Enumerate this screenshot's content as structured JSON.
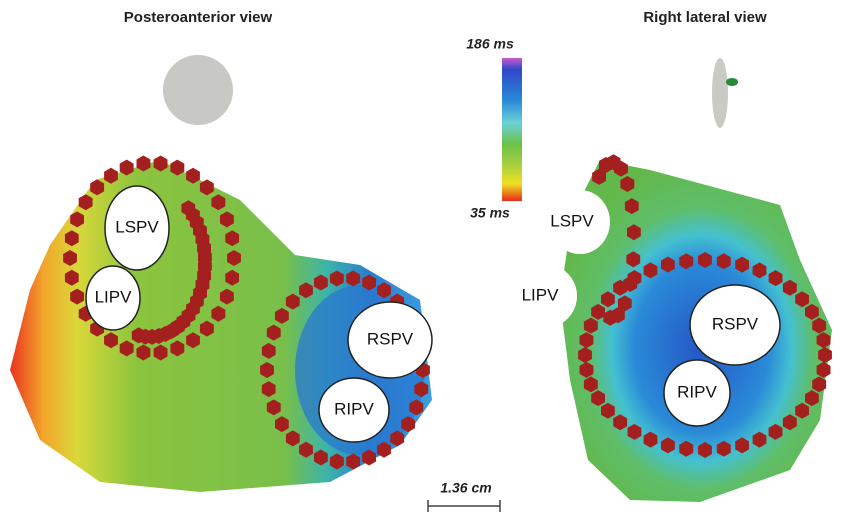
{
  "views": [
    {
      "title": "Posteroanterior view",
      "labels": [
        "LSPV",
        "LIPV",
        "RSPV",
        "RIPV"
      ]
    },
    {
      "title": "Right lateral view",
      "labels": [
        "LSPV",
        "LIPV",
        "RSPV",
        "RIPV"
      ]
    }
  ],
  "color_scale": {
    "max_label": "186 ms",
    "min_label": "35 ms"
  },
  "scale_bar": {
    "label": "1.36 cm"
  }
}
